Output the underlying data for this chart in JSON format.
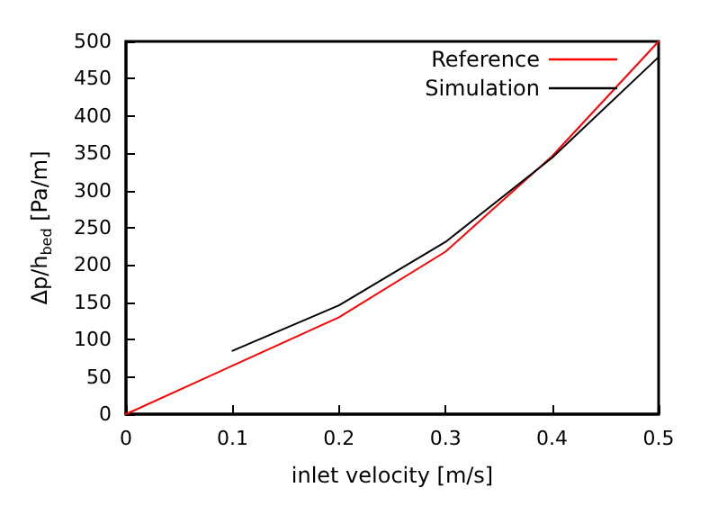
{
  "chart_data": {
    "type": "line",
    "xlabel": "inlet velocity [m/s]",
    "ylabel": "Δp/h$_{bed}$ [Pa/m]",
    "xlim": [
      0,
      0.5
    ],
    "xticks": [
      0,
      0.1,
      0.2,
      0.3,
      0.4,
      0.5
    ],
    "ylim": [
      0,
      500
    ],
    "yticks": [
      0,
      50,
      100,
      150,
      200,
      250,
      300,
      350,
      400,
      450,
      500
    ],
    "grid": false,
    "legend": "top right",
    "marker": "none",
    "line_style": "solid",
    "series": [
      {
        "name": "Reference",
        "color": "#ff0000",
        "x": [
          0,
          0.1,
          0.2,
          0.3,
          0.4,
          0.5
        ],
        "values": [
          0,
          65,
          130,
          218,
          346,
          500
        ]
      },
      {
        "name": "Simulation",
        "color": "#000000",
        "x": [
          0.1,
          0.2,
          0.3,
          0.4,
          0.5
        ],
        "values": [
          85,
          146,
          231,
          344,
          479
        ]
      }
    ]
  }
}
